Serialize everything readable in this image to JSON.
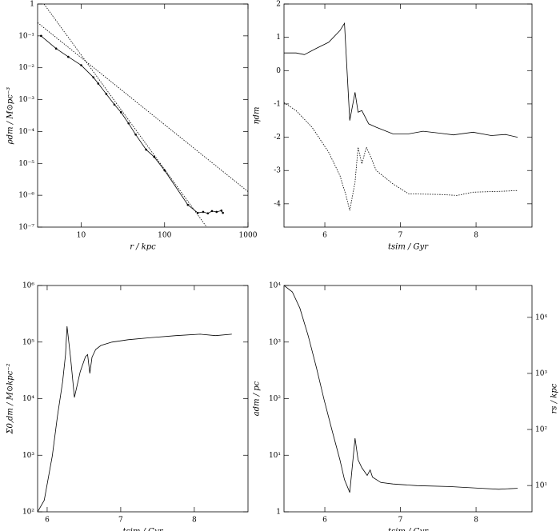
{
  "chart_data": [
    {
      "type": "line",
      "xlabel": "r / kpc",
      "ylabel": "ρdm / M⊙pc⁻³",
      "xscale": "log",
      "yscale": "log",
      "xlim": [
        3,
        1000
      ],
      "ylim": [
        1e-07,
        1
      ],
      "xticks": [
        10,
        100,
        1000
      ],
      "yticks": [
        {
          "value": 1e-07,
          "label": "10⁻⁷"
        },
        {
          "value": 1e-06,
          "label": "10⁻⁶"
        },
        {
          "value": 1e-05,
          "label": "10⁻⁵"
        },
        {
          "value": 0.0001,
          "label": "10⁻⁴"
        },
        {
          "value": 0.001,
          "label": "10⁻³"
        },
        {
          "value": 0.01,
          "label": "10⁻²"
        },
        {
          "value": 0.1,
          "label": "10⁻¹"
        },
        1
      ],
      "series": [
        {
          "color": "#000000",
          "markers": true,
          "x": [
            3.3,
            5,
            7,
            10,
            14,
            16,
            20,
            25,
            30,
            37,
            45,
            60,
            75,
            100,
            190,
            250,
            290,
            330,
            370,
            420,
            480,
            500
          ],
          "values": [
            0.1,
            0.04,
            0.022,
            0.012,
            0.005,
            0.0032,
            0.0015,
            0.0007,
            0.0004,
            0.00018,
            8e-05,
            2.7e-05,
            1.6e-05,
            6e-06,
            5e-07,
            2.8e-07,
            3e-07,
            2.7e-07,
            3.2e-07,
            3e-07,
            3.3e-07,
            2.8e-07
          ]
        },
        {
          "color": "#000000",
          "dash": true,
          "x": [
            3.58,
            320
          ],
          "values": [
            1,
            1e-07
          ]
        },
        {
          "color": "#000000",
          "dash": true,
          "x": [
            3,
            1000
          ],
          "values": [
            0.26,
            1.3e-06
          ]
        }
      ]
    },
    {
      "type": "line",
      "xlabel": "tsim / Gyr",
      "ylabel": "ηdm",
      "xlim": [
        5.46,
        8.74
      ],
      "ylim": [
        -4.7,
        2
      ],
      "xticks": [
        6,
        7,
        8
      ],
      "yticks": [
        -4,
        -3,
        -2,
        -1,
        0,
        1,
        2
      ],
      "series": [
        {
          "color": "#000000",
          "x": [
            5.46,
            5.62,
            5.73,
            5.89,
            6.05,
            6.2,
            6.26,
            6.33,
            6.4,
            6.44,
            6.49,
            6.58,
            6.68,
            6.9,
            7.11,
            7.3,
            7.53,
            7.7,
            7.96,
            8.2,
            8.39,
            8.55
          ],
          "values": [
            0.53,
            0.53,
            0.48,
            0.67,
            0.85,
            1.2,
            1.42,
            -1.5,
            -0.65,
            -1.25,
            -1.2,
            -1.6,
            -1.7,
            -1.9,
            -1.9,
            -1.82,
            -1.88,
            -1.93,
            -1.85,
            -1.95,
            -1.92,
            -2.0
          ]
        },
        {
          "color": "#000000",
          "dash": true,
          "x": [
            5.46,
            5.62,
            5.83,
            6.05,
            6.2,
            6.28,
            6.33,
            6.4,
            6.44,
            6.49,
            6.55,
            6.6,
            6.68,
            6.9,
            7.11,
            7.53,
            7.75,
            7.96,
            8.39,
            8.55
          ],
          "values": [
            -0.96,
            -1.2,
            -1.7,
            -2.45,
            -3.15,
            -3.75,
            -4.2,
            -3.35,
            -2.3,
            -2.8,
            -2.3,
            -2.55,
            -3.0,
            -3.4,
            -3.7,
            -3.72,
            -3.75,
            -3.65,
            -3.62,
            -3.6
          ]
        }
      ]
    },
    {
      "type": "line",
      "xlabel": "tsim / Gyr",
      "ylabel": "Σ0,dm / M⊙kpc⁻²",
      "yscale": "log",
      "xlim": [
        5.87,
        8.73
      ],
      "ylim": [
        100,
        1000000
      ],
      "xticks": [
        6,
        7,
        8
      ],
      "yticks": [
        {
          "value": 100,
          "label": "10²"
        },
        {
          "value": 1000,
          "label": "10³"
        },
        {
          "value": 10000,
          "label": "10⁴"
        },
        {
          "value": 100000,
          "label": "10⁵"
        },
        {
          "value": 1000000,
          "label": "10⁶"
        }
      ],
      "series": [
        {
          "color": "#000000",
          "x": [
            5.87,
            5.96,
            6.07,
            6.14,
            6.21,
            6.25,
            6.27,
            6.32,
            6.37,
            6.45,
            6.52,
            6.55,
            6.58,
            6.61,
            6.66,
            6.73,
            6.88,
            7.1,
            7.42,
            7.75,
            8.08,
            8.29,
            8.51
          ],
          "values": [
            100,
            160,
            980,
            4900,
            20000,
            60000,
            190000,
            50000,
            10500,
            30000,
            55000,
            60000,
            28000,
            54000,
            74000,
            87000,
            100000,
            110000,
            120000,
            130000,
            138000,
            130000,
            138000
          ]
        }
      ]
    },
    {
      "type": "line",
      "xlabel": "tsim / Gyr",
      "ylabel": "adm / pc",
      "y2label": "rs / kpc",
      "yscale": "log",
      "y2scale": "log",
      "xlim": [
        5.46,
        8.74
      ],
      "ylim": [
        1,
        10000
      ],
      "y2lim": [
        3.4,
        37000
      ],
      "xticks": [
        6,
        7,
        8
      ],
      "yticks": [
        1,
        {
          "value": 10,
          "label": "10¹"
        },
        {
          "value": 100,
          "label": "10²"
        },
        {
          "value": 1000,
          "label": "10³"
        },
        {
          "value": 10000,
          "label": "10⁴"
        }
      ],
      "y2ticks": [
        {
          "value": 10,
          "label": "10¹"
        },
        {
          "value": 100,
          "label": "10²"
        },
        {
          "value": 1000,
          "label": "10³"
        },
        {
          "value": 10000,
          "label": "10⁴"
        }
      ],
      "series": [
        {
          "color": "#000000",
          "x": [
            5.46,
            5.57,
            5.67,
            5.78,
            5.89,
            5.99,
            6.1,
            6.2,
            6.26,
            6.33,
            6.4,
            6.44,
            6.49,
            6.56,
            6.6,
            6.63,
            6.74,
            6.9,
            7.22,
            7.64,
            8.07,
            8.3,
            8.55
          ],
          "values": [
            10000,
            7700,
            4000,
            1300,
            350,
            96,
            26,
            8.3,
            3.7,
            2.2,
            20,
            8.3,
            6,
            4.4,
            5.5,
            4.1,
            3.3,
            3.1,
            2.9,
            2.8,
            2.6,
            2.5,
            2.6
          ]
        }
      ]
    }
  ]
}
